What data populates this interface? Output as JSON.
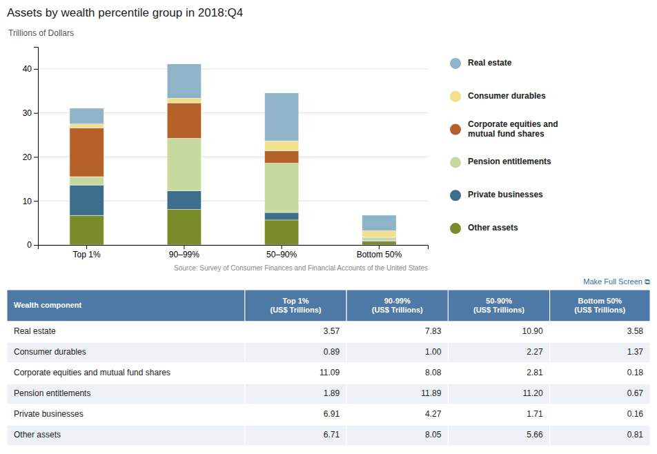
{
  "chart_data": [
    {
      "type": "bar",
      "stacked": true,
      "title": "Assets by wealth percentile group in 2018:Q4",
      "ylabel": "Trillions of Dollars",
      "annotations": [
        "Source: Survey of Consumer Finances and Financial Accounts of the United States",
        "Make Full Screen  ⧉"
      ],
      "categories": [
        "Top 1%",
        "90–99%",
        "50–90%",
        "Bottom 50%"
      ],
      "series": [
        {
          "name": "Other assets",
          "color": "#7a8c28",
          "values": [
            6.71,
            8.05,
            5.66,
            0.81
          ]
        },
        {
          "name": "Private businesses",
          "color": "#3d6e8c",
          "values": [
            6.91,
            4.27,
            1.71,
            0.16
          ]
        },
        {
          "name": "Pension entitlements",
          "color": "#c8d9a0",
          "values": [
            1.89,
            11.89,
            11.2,
            0.67
          ]
        },
        {
          "name": "Corporate equities and\nmutual fund shares",
          "color": "#b5622a",
          "values": [
            11.09,
            8.08,
            2.81,
            0.18
          ]
        },
        {
          "name": "Consumer durables",
          "color": "#f0e08c",
          "values": [
            0.89,
            1.0,
            2.27,
            1.37
          ]
        },
        {
          "name": "Real estate",
          "color": "#8fb4c8",
          "values": [
            3.57,
            7.83,
            10.9,
            3.58
          ]
        }
      ],
      "ylim": [
        0,
        45
      ],
      "yticks": [
        0,
        10,
        20,
        30,
        40
      ],
      "grid": true
    },
    {
      "type": "table",
      "columns": [
        "Wealth component",
        "Top 1%\n(US$ Trillions)",
        "90-99%\n(US$ Trillions)",
        "50-90%\n(US$ Trillions)",
        "Bottom 50%\n(US$ Trillions)"
      ],
      "rows": [
        "Real estate",
        "Consumer durables",
        "Corporate equities and mutual fund shares",
        "Pension entitlements",
        "Private businesses",
        "Other assets"
      ],
      "values": [
        [
          3.57,
          7.83,
          10.9,
          3.58
        ],
        [
          0.89,
          1.0,
          2.27,
          1.37
        ],
        [
          11.09,
          8.08,
          2.81,
          0.18
        ],
        [
          1.89,
          11.89,
          11.2,
          0.67
        ],
        [
          6.91,
          4.27,
          1.71,
          0.16
        ],
        [
          6.71,
          8.05,
          5.66,
          0.81
        ]
      ],
      "value_labels": [
        [
          "3.57",
          "7.83",
          "10.90",
          "3.58"
        ],
        [
          "0.89",
          "1.00",
          "2.27",
          "1.37"
        ],
        [
          "11.09",
          "8.08",
          "2.81",
          "0.18"
        ],
        [
          "1.89",
          "11.89",
          "11.20",
          "0.67"
        ],
        [
          "6.91",
          "4.27",
          "1.71",
          "0.16"
        ],
        [
          "6.71",
          "8.05",
          "5.66",
          "0.81"
        ]
      ]
    }
  ]
}
